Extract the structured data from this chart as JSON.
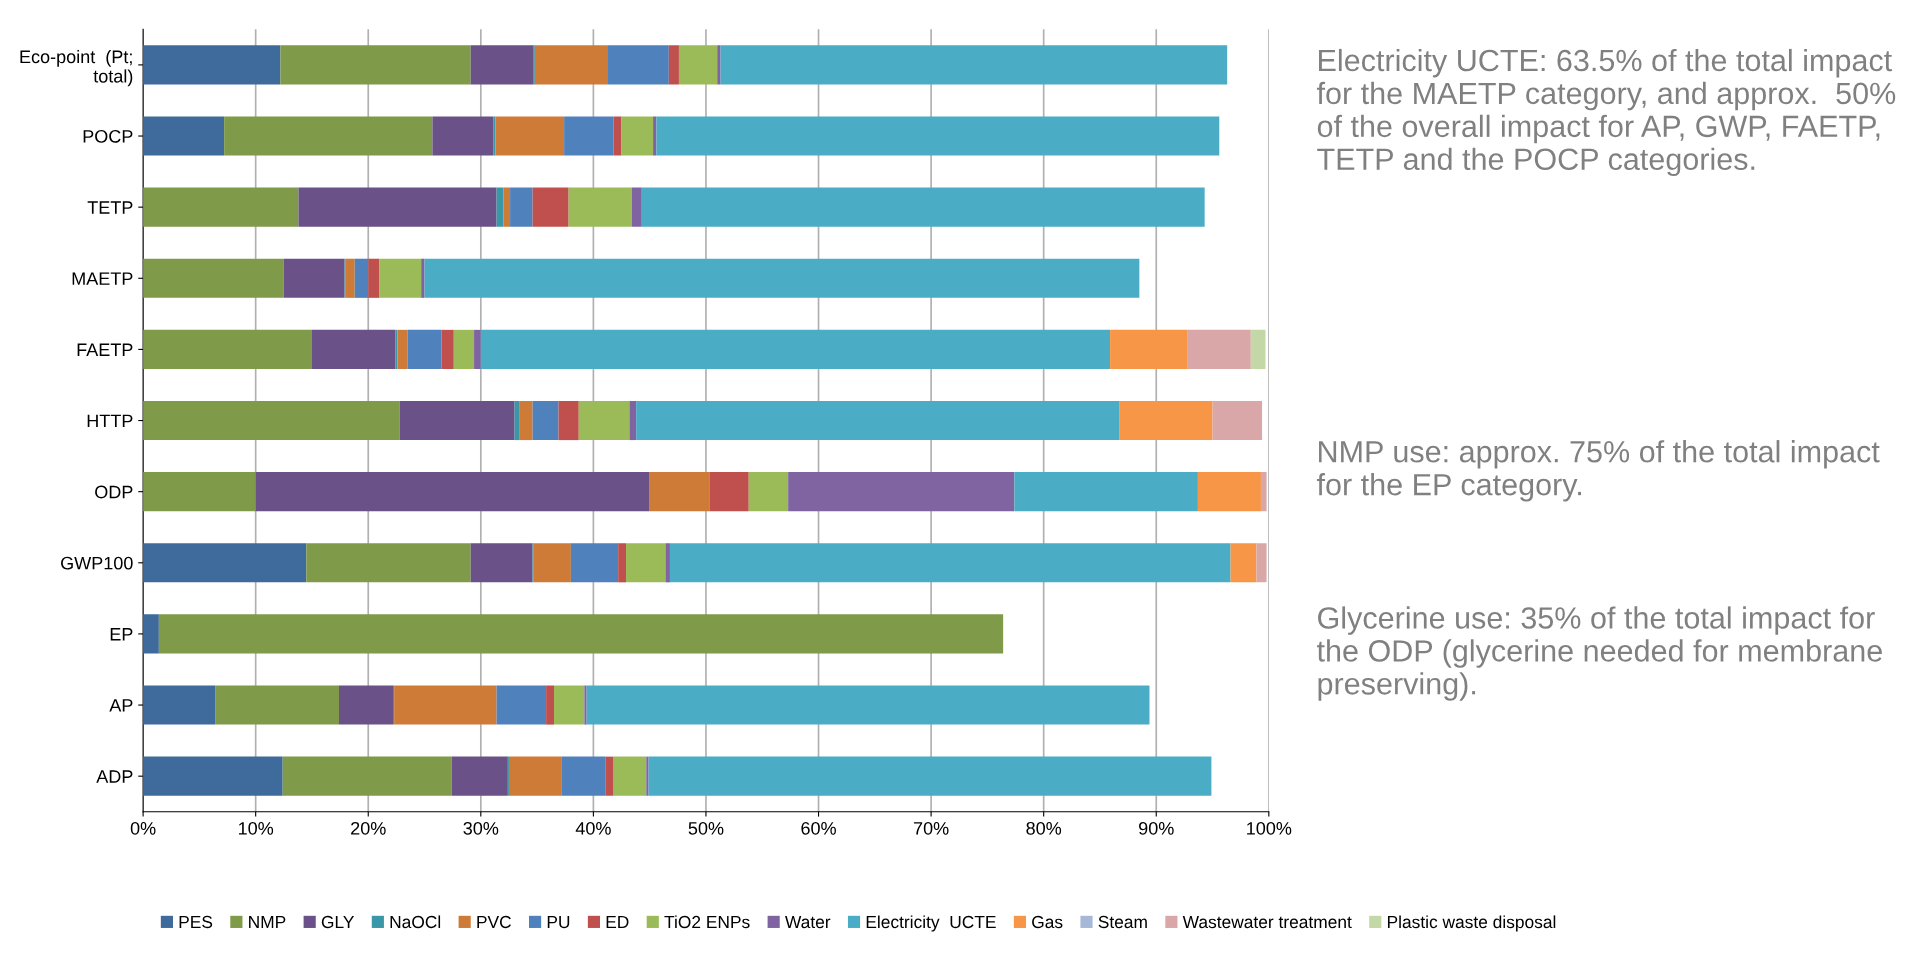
{
  "chart_data": {
    "type": "bar",
    "orientation": "horizontal",
    "stacked": true,
    "categories": [
      "Eco-point  (Pt;\ntotal)",
      "POCP",
      "TETP",
      "MAETP",
      "FAETP",
      "HTTP",
      "ODP",
      "GWP100",
      "EP",
      "AP",
      "ADP"
    ],
    "series": [
      {
        "name": "PES",
        "color": "#3f6b9c",
        "values": [
          12.2,
          7.2,
          0,
          0,
          0,
          null,
          0,
          14.5,
          1.4,
          6.4,
          12.4
        ]
      },
      {
        "name": "NMP",
        "color": "#7f9a48",
        "values": [
          16.9,
          18.5,
          13.8,
          12.5,
          15.0,
          22.8,
          10.0,
          14.6,
          75,
          11.0,
          15.0
        ]
      },
      {
        "name": "GLY",
        "color": "#6a5187",
        "values": [
          5.6,
          5.4,
          17.6,
          5.4,
          7.4,
          10.2,
          35.0,
          5.5,
          null,
          4.8,
          5.0
        ]
      },
      {
        "name": "NaOCl",
        "color": "#3a97a8",
        "values": [
          0.1,
          0.2,
          0.6,
          0.1,
          0.2,
          0.4,
          0,
          0.1,
          null,
          0.1,
          0.1
        ]
      },
      {
        "name": "PVC",
        "color": "#cd7b37",
        "values": [
          6.5,
          6.1,
          0.6,
          0.8,
          0.9,
          1.2,
          5.3,
          3.3,
          null,
          9.1,
          4.7
        ]
      },
      {
        "name": "PU",
        "color": "#4f81bd",
        "values": [
          5.4,
          4.4,
          2.0,
          1.2,
          3.0,
          2.3,
          0,
          4.2,
          null,
          4.4,
          3.9
        ]
      },
      {
        "name": "ED",
        "color": "#c0504d",
        "values": [
          0.9,
          0.7,
          3.2,
          1.0,
          1.1,
          1.8,
          3.5,
          0.7,
          null,
          0.7,
          0.7
        ]
      },
      {
        "name": "TiO2 ENPs",
        "color": "#9bbb59",
        "values": [
          3.4,
          2.8,
          5.6,
          3.7,
          1.8,
          4.5,
          3.5,
          3.5,
          null,
          2.7,
          2.9
        ]
      },
      {
        "name": "Water",
        "color": "#8064a2",
        "values": [
          0.3,
          0.3,
          0.9,
          0.3,
          0.6,
          0.6,
          20.1,
          0.4,
          null,
          0.2,
          0.2
        ]
      },
      {
        "name": "Electricity  UCTE",
        "color": "#4bacc6",
        "values": [
          45,
          50,
          50,
          63.5,
          55.9,
          42.9,
          16.3,
          49.8,
          null,
          50,
          50
        ]
      },
      {
        "name": "Gas",
        "color": "#f79646",
        "values": [
          null,
          null,
          null,
          null,
          6.9,
          8.3,
          5.6,
          2.3,
          null,
          null,
          null
        ]
      },
      {
        "name": "Steam",
        "color": "#a5b8d8",
        "values": [
          null,
          null,
          null,
          null,
          0,
          0,
          0,
          0,
          null,
          null,
          null
        ]
      },
      {
        "name": "Wastewater treatment",
        "color": "#d9a7a7",
        "values": [
          null,
          null,
          null,
          null,
          5.6,
          4.4,
          0.5,
          0.9,
          null,
          null,
          null
        ]
      },
      {
        "name": "Plastic waste disposal",
        "color": "#c4d7a7",
        "values": [
          null,
          null,
          null,
          null,
          1.3,
          null,
          0,
          0,
          null,
          null,
          null
        ]
      }
    ],
    "xlim": [
      0,
      100
    ],
    "xticks": [
      {
        "value": 0,
        "label": "0%"
      },
      {
        "value": 10,
        "label": "10%"
      },
      {
        "value": 20,
        "label": "20%"
      },
      {
        "value": 30,
        "label": "30%"
      },
      {
        "value": 40,
        "label": "40%"
      },
      {
        "value": 50,
        "label": "50%"
      },
      {
        "value": 60,
        "label": "60%"
      },
      {
        "value": 70,
        "label": "70%"
      },
      {
        "value": 80,
        "label": "80%"
      },
      {
        "value": 90,
        "label": "90%"
      },
      {
        "value": 100,
        "label": "100%"
      }
    ],
    "grid": "x",
    "legend": "bottom",
    "annotations": [
      "Electricity UCTE: 63.5% of the total impact for the MAETP category, and approx.  50% of the overall impact for AP, GWP, FAETP, TETP and the POCP categories.",
      "NMP use: approx. 75% of the total impact for the EP category.",
      "Glycerine use: 35% of the total impact for the ODP (glycerine needed for membrane preserving)."
    ]
  }
}
